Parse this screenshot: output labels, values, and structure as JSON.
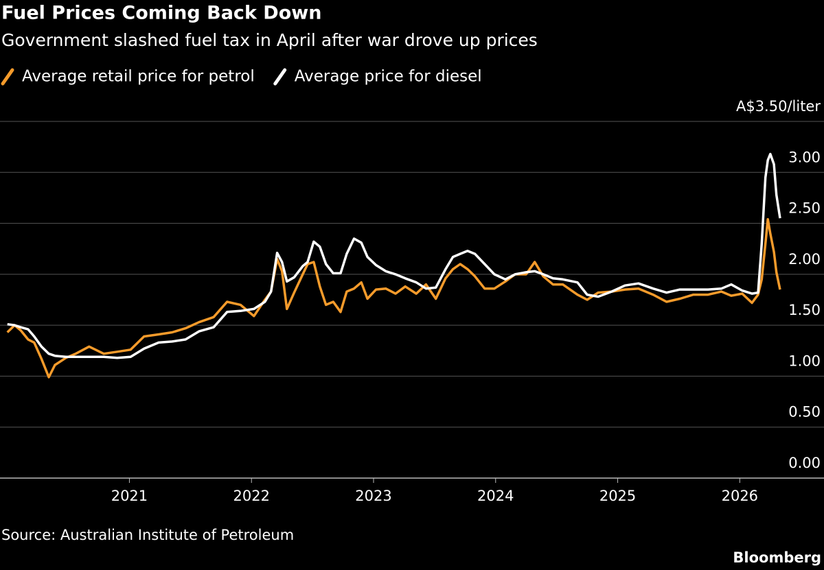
{
  "chart_data": {
    "type": "line",
    "title": "Fuel Prices Coming Back Down",
    "subtitle": "Government slashed fuel tax in April after war drove up prices",
    "source": "Source: Australian Institute of Petroleum",
    "brand": "Bloomberg",
    "x": [
      2020.0,
      2020.06,
      2020.11,
      2020.17,
      2020.22,
      2020.28,
      2020.34,
      2020.39,
      2020.48,
      2020.56,
      2020.67,
      2020.79,
      2020.9,
      2021.01,
      2021.12,
      2021.24,
      2021.35,
      2021.46,
      2021.57,
      2021.69,
      2021.8,
      2021.91,
      2022.02,
      2022.11,
      2022.16,
      2022.21,
      2022.25,
      2022.29,
      2022.35,
      2022.42,
      2022.46,
      2022.51,
      2022.56,
      2022.61,
      2022.67,
      2022.73,
      2022.78,
      2022.84,
      2022.9,
      2022.95,
      2023.02,
      2023.1,
      2023.18,
      2023.26,
      2023.35,
      2023.43,
      2023.51,
      2023.59,
      2023.65,
      2023.71,
      2023.77,
      2023.83,
      2023.91,
      2023.99,
      2024.08,
      2024.16,
      2024.25,
      2024.32,
      2024.39,
      2024.47,
      2024.55,
      2024.67,
      2024.75,
      2024.84,
      2024.95,
      2025.06,
      2025.17,
      2025.29,
      2025.4,
      2025.51,
      2025.62,
      2025.74,
      2025.85,
      2025.93,
      2026.02,
      2026.1,
      2026.15,
      2026.18,
      2026.21,
      2026.23,
      2026.25,
      2026.28,
      2026.3,
      2026.33
    ],
    "series": [
      {
        "name": "Average retail price for petrol",
        "color": "#f59b2b",
        "values": [
          1.43,
          1.5,
          1.45,
          1.36,
          1.33,
          1.17,
          0.99,
          1.11,
          1.18,
          1.22,
          1.29,
          1.22,
          1.24,
          1.26,
          1.39,
          1.41,
          1.43,
          1.47,
          1.53,
          1.58,
          1.73,
          1.7,
          1.59,
          1.75,
          1.83,
          2.15,
          2.03,
          1.66,
          1.82,
          2.0,
          2.1,
          2.12,
          1.88,
          1.7,
          1.73,
          1.63,
          1.83,
          1.86,
          1.92,
          1.76,
          1.85,
          1.86,
          1.81,
          1.88,
          1.81,
          1.9,
          1.76,
          1.96,
          2.05,
          2.1,
          2.05,
          1.98,
          1.86,
          1.86,
          1.93,
          2.0,
          2.0,
          2.12,
          1.98,
          1.9,
          1.9,
          1.8,
          1.75,
          1.82,
          1.83,
          1.85,
          1.86,
          1.8,
          1.73,
          1.76,
          1.8,
          1.8,
          1.83,
          1.79,
          1.81,
          1.72,
          1.8,
          1.95,
          2.3,
          2.54,
          2.4,
          2.22,
          2.02,
          1.85
        ]
      },
      {
        "name": "Average price for diesel",
        "color": "#ffffff",
        "values": [
          1.51,
          1.5,
          1.48,
          1.46,
          1.39,
          1.29,
          1.22,
          1.2,
          1.19,
          1.19,
          1.19,
          1.19,
          1.18,
          1.19,
          1.27,
          1.33,
          1.34,
          1.36,
          1.44,
          1.48,
          1.63,
          1.64,
          1.66,
          1.73,
          1.83,
          2.21,
          2.12,
          1.93,
          1.97,
          2.08,
          2.12,
          2.32,
          2.27,
          2.1,
          2.01,
          2.01,
          2.2,
          2.35,
          2.31,
          2.17,
          2.09,
          2.03,
          2.0,
          1.96,
          1.92,
          1.86,
          1.87,
          2.05,
          2.17,
          2.2,
          2.23,
          2.2,
          2.1,
          2.0,
          1.95,
          2.0,
          2.02,
          2.03,
          2.0,
          1.96,
          1.95,
          1.92,
          1.8,
          1.78,
          1.83,
          1.89,
          1.91,
          1.86,
          1.82,
          1.85,
          1.85,
          1.85,
          1.86,
          1.9,
          1.84,
          1.81,
          1.82,
          2.3,
          2.95,
          3.12,
          3.18,
          3.08,
          2.78,
          2.55
        ]
      }
    ],
    "xlim": [
      2019.94,
      2026.69
    ],
    "xticks": [
      2021,
      2022,
      2023,
      2024,
      2025,
      2026
    ],
    "ylim": [
      0,
      3.5
    ],
    "yticks": [
      {
        "value": 0,
        "label": "0.00"
      },
      {
        "value": 0.5,
        "label": "0.50"
      },
      {
        "value": 1,
        "label": "1.00"
      },
      {
        "value": 1.5,
        "label": "1.50"
      },
      {
        "value": 2,
        "label": "2.00"
      },
      {
        "value": 2.5,
        "label": "2.50"
      },
      {
        "value": 3,
        "label": "3.00"
      },
      {
        "value": 3.5,
        "label": "A$3.50/liter"
      }
    ],
    "grid": true
  }
}
